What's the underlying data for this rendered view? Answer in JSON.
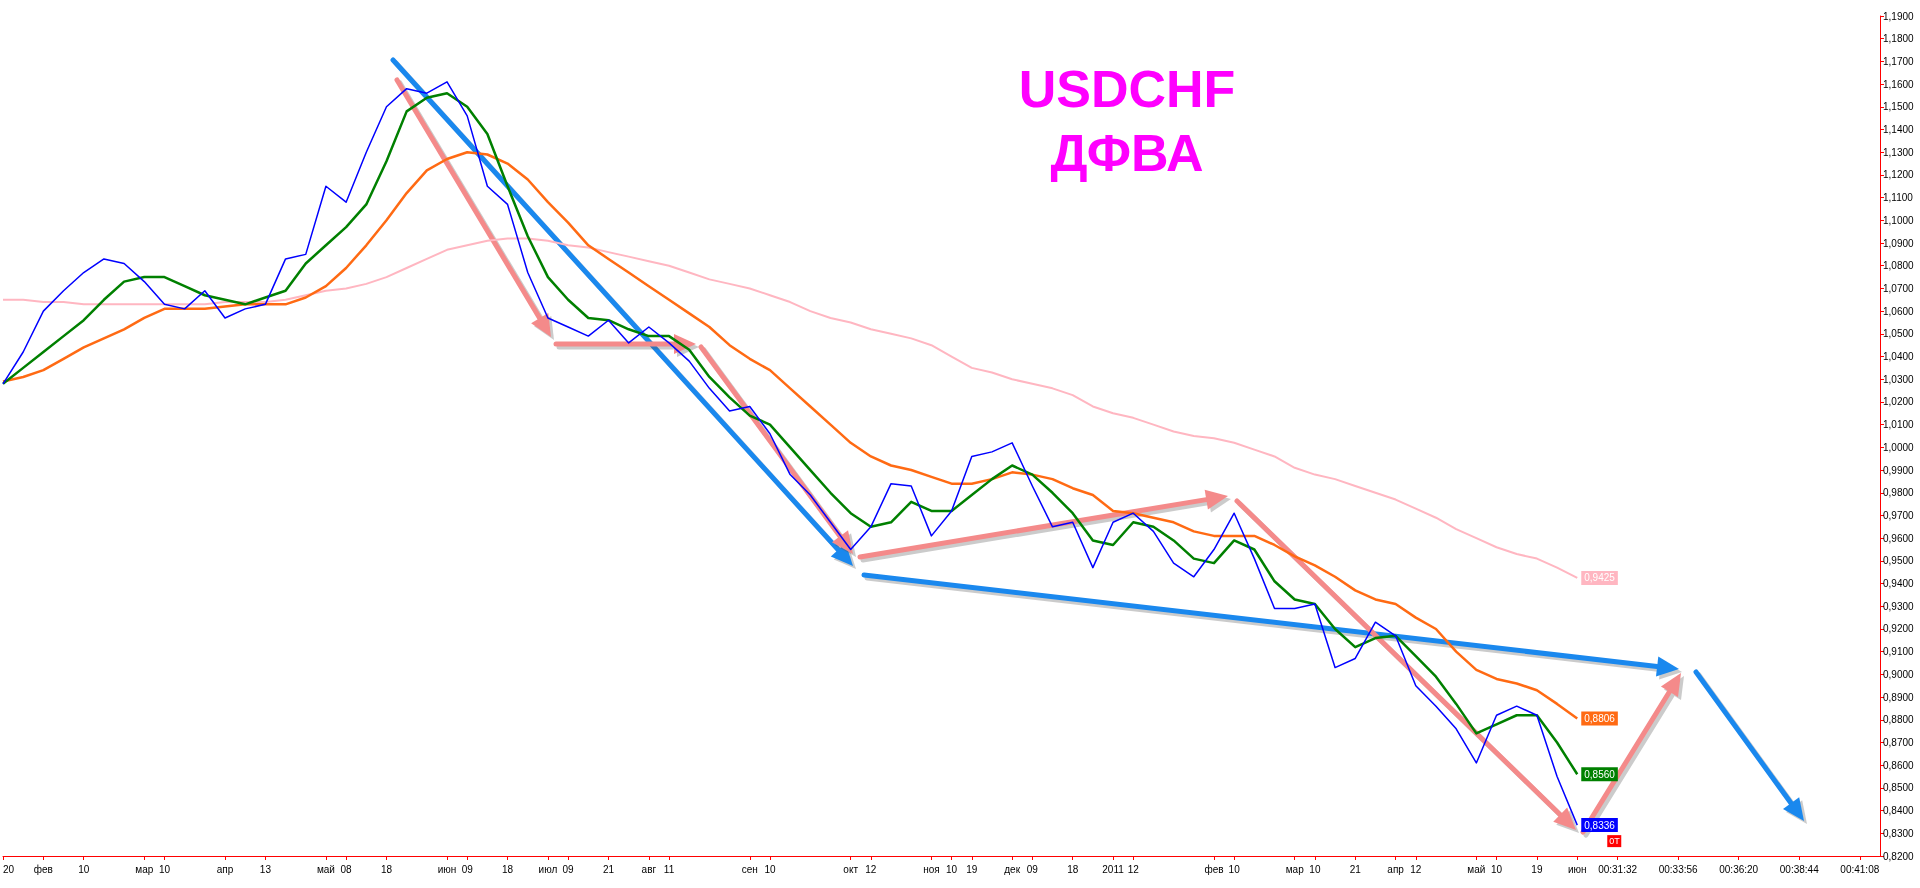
{
  "chart_data": {
    "type": "line",
    "title": "USDCHF",
    "subtitle": "ДФВА",
    "categories": [
      "20",
      null,
      "фев",
      null,
      "10",
      null,
      null,
      "мар",
      "10",
      null,
      null,
      "апр",
      null,
      "13",
      null,
      null,
      "май",
      "08",
      null,
      "18",
      null,
      null,
      "июн",
      "09",
      null,
      "18",
      null,
      "июл",
      "09",
      null,
      "21",
      null,
      "авг",
      "11",
      null,
      null,
      null,
      "сен",
      "10",
      null,
      null,
      null,
      "окт",
      "12",
      null,
      null,
      "ноя",
      "10",
      "19",
      null,
      "дек",
      "09",
      null,
      "18",
      null,
      "2011",
      "12",
      null,
      null,
      null,
      "фев",
      "10",
      null,
      null,
      "мар",
      "10",
      null,
      "21",
      null,
      "апр",
      "12",
      null,
      null,
      "май",
      "10",
      null,
      "19",
      null,
      "июн",
      null,
      "00:31:32",
      null,
      null,
      "00:33:56",
      null,
      null,
      "00:36:20",
      null,
      null,
      "00:38:44",
      null,
      null,
      "00:41:08",
      null
    ],
    "series": [
      {
        "color": "#ffb6c1",
        "values": [
          1.065,
          1.065,
          1.064,
          1.064,
          1.063,
          1.063,
          1.063,
          1.063,
          1.063,
          1.063,
          1.063,
          1.064,
          1.064,
          1.064,
          1.065,
          1.067,
          1.069,
          1.07,
          1.072,
          1.075,
          1.079,
          1.083,
          1.087,
          1.089,
          1.091,
          1.092,
          1.092,
          1.091,
          1.089,
          1.088,
          1.086,
          1.084,
          1.082,
          1.08,
          1.077,
          1.074,
          1.072,
          1.07,
          1.067,
          1.064,
          1.06,
          1.057,
          1.055,
          1.052,
          1.05,
          1.048,
          1.045,
          1.04,
          1.035,
          1.033,
          1.03,
          1.028,
          1.026,
          1.023,
          1.018,
          1.015,
          1.013,
          1.01,
          1.007,
          1.005,
          1.004,
          1.002,
          0.999,
          0.996,
          0.991,
          0.988,
          0.986,
          0.983,
          0.98,
          0.977,
          0.973,
          0.969,
          0.964,
          0.96,
          0.956,
          0.953,
          0.951,
          0.947,
          0.9425,
          null,
          null,
          null,
          null,
          null,
          null,
          null,
          null,
          null,
          null,
          null,
          null,
          null,
          null,
          null
        ],
        "value_labels": [
          null,
          null,
          null,
          null,
          null,
          null,
          null,
          null,
          null,
          null,
          null,
          null,
          null,
          null,
          null,
          null,
          null,
          null,
          null,
          null,
          null,
          null,
          null,
          null,
          null,
          null,
          null,
          null,
          null,
          null,
          null,
          null,
          null,
          null,
          null,
          null,
          null,
          null,
          null,
          null,
          null,
          null,
          null,
          null,
          null,
          null,
          null,
          null,
          null,
          null,
          null,
          null,
          null,
          null,
          null,
          null,
          null,
          null,
          null,
          null,
          null,
          null,
          null,
          null,
          null,
          null,
          null,
          null,
          null,
          null,
          null,
          null,
          null,
          null,
          null,
          null,
          null,
          null,
          "0,9425",
          null,
          null,
          null,
          null,
          null,
          null,
          null,
          null,
          null,
          null,
          null,
          null,
          null,
          null,
          null
        ]
      },
      {
        "color": "#ff6a13",
        "values": [
          1.029,
          1.031,
          1.034,
          1.039,
          1.044,
          1.048,
          1.052,
          1.057,
          1.061,
          1.061,
          1.061,
          1.062,
          1.063,
          1.063,
          1.063,
          1.066,
          1.071,
          1.079,
          1.089,
          1.1,
          1.112,
          1.122,
          1.127,
          1.13,
          1.129,
          1.125,
          1.118,
          1.108,
          1.099,
          1.089,
          1.083,
          1.077,
          1.071,
          1.065,
          1.059,
          1.053,
          1.045,
          1.039,
          1.034,
          1.026,
          1.018,
          1.01,
          1.002,
          0.996,
          0.992,
          0.99,
          0.987,
          0.984,
          0.984,
          0.986,
          0.989,
          0.988,
          0.986,
          0.982,
          0.979,
          0.972,
          0.971,
          0.969,
          0.967,
          0.963,
          0.961,
          0.961,
          0.961,
          0.957,
          0.952,
          0.948,
          0.943,
          0.937,
          0.933,
          0.931,
          0.925,
          0.92,
          0.91,
          0.902,
          0.898,
          0.896,
          0.893,
          0.887,
          0.8806,
          null,
          null,
          null,
          null,
          null,
          null,
          null,
          null,
          null,
          null,
          null,
          null,
          null,
          null,
          null
        ],
        "value_labels": [
          null,
          null,
          null,
          null,
          null,
          null,
          null,
          null,
          null,
          null,
          null,
          null,
          null,
          null,
          null,
          null,
          null,
          null,
          null,
          null,
          null,
          null,
          null,
          null,
          null,
          null,
          null,
          null,
          null,
          null,
          null,
          null,
          null,
          null,
          null,
          null,
          null,
          null,
          null,
          null,
          null,
          null,
          null,
          null,
          null,
          null,
          null,
          null,
          null,
          null,
          null,
          null,
          null,
          null,
          null,
          null,
          null,
          null,
          null,
          null,
          null,
          null,
          null,
          null,
          null,
          null,
          null,
          null,
          null,
          null,
          null,
          null,
          null,
          null,
          null,
          null,
          null,
          null,
          "0,8806",
          null,
          null,
          null,
          null,
          null,
          null,
          null,
          null,
          null,
          null,
          null,
          null,
          null,
          null,
          null
        ]
      },
      {
        "color": "#008000",
        "values": [
          1.028,
          1.035,
          1.042,
          1.049,
          1.056,
          1.065,
          1.073,
          1.075,
          1.075,
          1.071,
          1.067,
          1.065,
          1.063,
          1.066,
          1.069,
          1.081,
          1.089,
          1.097,
          1.107,
          1.126,
          1.148,
          1.154,
          1.156,
          1.15,
          1.138,
          1.115,
          1.093,
          1.075,
          1.065,
          1.057,
          1.056,
          1.052,
          1.049,
          1.049,
          1.043,
          1.031,
          1.022,
          1.014,
          1.01,
          1.0,
          0.99,
          0.98,
          0.971,
          0.965,
          0.967,
          0.976,
          0.972,
          0.972,
          0.979,
          0.986,
          0.992,
          0.988,
          0.98,
          0.971,
          0.959,
          0.957,
          0.967,
          0.965,
          0.959,
          0.951,
          0.949,
          0.959,
          0.955,
          0.941,
          0.933,
          0.931,
          0.92,
          0.912,
          0.916,
          0.917,
          0.908,
          0.899,
          0.887,
          0.874,
          0.878,
          0.882,
          0.882,
          0.87,
          0.856,
          null,
          null,
          null,
          null,
          null,
          null,
          null,
          null,
          null,
          null,
          null,
          null,
          null,
          null,
          null
        ],
        "value_labels": [
          null,
          null,
          null,
          null,
          null,
          null,
          null,
          null,
          null,
          null,
          null,
          null,
          null,
          null,
          null,
          null,
          null,
          null,
          null,
          null,
          null,
          null,
          null,
          null,
          null,
          null,
          null,
          null,
          null,
          null,
          null,
          null,
          null,
          null,
          null,
          null,
          null,
          null,
          null,
          null,
          null,
          null,
          null,
          null,
          null,
          null,
          null,
          null,
          null,
          null,
          null,
          null,
          null,
          null,
          null,
          null,
          null,
          null,
          null,
          null,
          null,
          null,
          null,
          null,
          null,
          null,
          null,
          null,
          null,
          null,
          null,
          null,
          null,
          null,
          null,
          null,
          null,
          null,
          "0,8560",
          null,
          null,
          null,
          null,
          null,
          null,
          null,
          null,
          null,
          null,
          null,
          null,
          null,
          null,
          null
        ]
      },
      {
        "color": "#0000ff",
        "values": [
          1.028,
          1.042,
          1.06,
          1.069,
          1.077,
          1.083,
          1.081,
          1.073,
          1.063,
          1.061,
          1.069,
          1.057,
          1.061,
          1.063,
          1.083,
          1.085,
          1.115,
          1.108,
          1.13,
          1.15,
          1.158,
          1.156,
          1.161,
          1.146,
          1.115,
          1.107,
          1.077,
          1.057,
          1.053,
          1.049,
          1.056,
          1.046,
          1.053,
          1.046,
          1.038,
          1.026,
          1.016,
          1.018,
          1.006,
          0.988,
          0.979,
          0.967,
          0.955,
          0.965,
          0.984,
          0.983,
          0.961,
          0.972,
          0.996,
          0.998,
          1.002,
          0.983,
          0.965,
          0.967,
          0.947,
          0.967,
          0.971,
          0.963,
          0.949,
          0.943,
          0.955,
          0.971,
          0.951,
          0.929,
          0.929,
          0.931,
          0.903,
          0.907,
          0.923,
          0.917,
          0.895,
          0.886,
          0.876,
          0.861,
          0.882,
          0.886,
          0.882,
          0.855,
          0.8336,
          null,
          null,
          null,
          null,
          null,
          null,
          null,
          null,
          null,
          null,
          null,
          null,
          null,
          null,
          null
        ],
        "value_labels": [
          null,
          null,
          null,
          null,
          null,
          null,
          null,
          null,
          null,
          null,
          null,
          null,
          null,
          null,
          null,
          null,
          null,
          null,
          null,
          null,
          null,
          null,
          null,
          null,
          null,
          null,
          null,
          null,
          null,
          null,
          null,
          null,
          null,
          null,
          null,
          null,
          null,
          null,
          null,
          null,
          null,
          null,
          null,
          null,
          null,
          null,
          null,
          null,
          null,
          null,
          null,
          null,
          null,
          null,
          null,
          null,
          null,
          null,
          null,
          null,
          null,
          null,
          null,
          null,
          null,
          null,
          null,
          null,
          null,
          null,
          null,
          null,
          null,
          null,
          null,
          null,
          null,
          null,
          "0,8336",
          null,
          null,
          null,
          null,
          null,
          null,
          null,
          null,
          null,
          null,
          null,
          null,
          null,
          null,
          null
        ]
      }
    ],
    "ylim": [
      0.82,
      1.19
    ],
    "yticks": [
      {
        "value": 0.82,
        "label": "0,8200"
      },
      {
        "value": 0.83,
        "label": "0,8300"
      },
      {
        "value": 0.84,
        "label": "0,8400"
      },
      {
        "value": 0.85,
        "label": "0,8500"
      },
      {
        "value": 0.86,
        "label": "0,8600"
      },
      {
        "value": 0.87,
        "label": "0,8700"
      },
      {
        "value": 0.88,
        "label": "0,8800"
      },
      {
        "value": 0.89,
        "label": "0,8900"
      },
      {
        "value": 0.9,
        "label": "0,9000"
      },
      {
        "value": 0.91,
        "label": "0,9100"
      },
      {
        "value": 0.92,
        "label": "0,9200"
      },
      {
        "value": 0.93,
        "label": "0,9300"
      },
      {
        "value": 0.94,
        "label": "0,9400"
      },
      {
        "value": 0.95,
        "label": "0,9500"
      },
      {
        "value": 0.96,
        "label": "0,9600"
      },
      {
        "value": 0.97,
        "label": "0,9700"
      },
      {
        "value": 0.98,
        "label": "0,9800"
      },
      {
        "value": 0.99,
        "label": "0,9900"
      },
      {
        "value": 1.0,
        "label": "1,0000"
      },
      {
        "value": 1.01,
        "label": "1,0100"
      },
      {
        "value": 1.02,
        "label": "1,0200"
      },
      {
        "value": 1.03,
        "label": "1,0300"
      },
      {
        "value": 1.04,
        "label": "1,0400"
      },
      {
        "value": 1.05,
        "label": "1,0500"
      },
      {
        "value": 1.06,
        "label": "1,0600"
      },
      {
        "value": 1.07,
        "label": "1,0700"
      },
      {
        "value": 1.08,
        "label": "1,0800"
      },
      {
        "value": 1.09,
        "label": "1,0900"
      },
      {
        "value": 1.1,
        "label": "1,1000"
      },
      {
        "value": 1.11,
        "label": "1,1100"
      },
      {
        "value": 1.12,
        "label": "1,1200"
      },
      {
        "value": 1.13,
        "label": "1,1300"
      },
      {
        "value": 1.14,
        "label": "1,1400"
      },
      {
        "value": 1.15,
        "label": "1,1500"
      },
      {
        "value": 1.16,
        "label": "1,1600"
      },
      {
        "value": 1.17,
        "label": "1,1700"
      },
      {
        "value": 1.18,
        "label": "1,1800"
      },
      {
        "value": 1.19,
        "label": "1,1900"
      }
    ],
    "annotations": [
      "0T"
    ],
    "grid": false,
    "marker": "none",
    "line_style": "solid"
  }
}
